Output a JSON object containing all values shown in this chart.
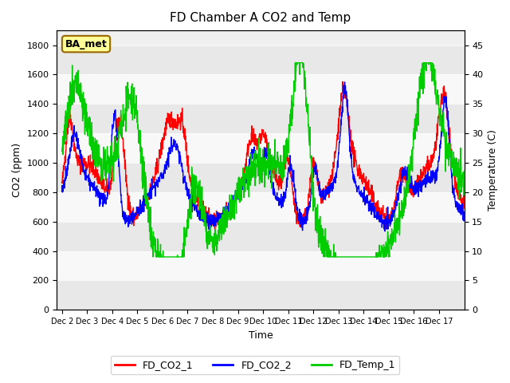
{
  "title": "FD Chamber A CO2 and Temp",
  "xlabel": "Time",
  "ylabel_left": "CO2 (ppm)",
  "ylabel_right": "Temperature (C)",
  "ylim_left": [
    0,
    1900
  ],
  "ylim_right": [
    0,
    47.5
  ],
  "yticks_left": [
    0,
    200,
    400,
    600,
    800,
    1000,
    1200,
    1400,
    1600,
    1800
  ],
  "yticks_right": [
    0,
    5,
    10,
    15,
    20,
    25,
    30,
    35,
    40,
    45
  ],
  "xtick_labels": [
    "Dec 2",
    "Dec 3",
    "Dec 4",
    "Dec 5",
    "Dec 6",
    "Dec 7",
    "Dec 8",
    "Dec 9",
    "Dec 10",
    "Dec 11",
    "Dec 12",
    "Dec 13",
    "Dec 14",
    "Dec 15",
    "Dec 16",
    "Dec 17"
  ],
  "n_days": 16,
  "background_color": "#ffffff",
  "plot_bg_color": "#f0f0f0",
  "band_colors": [
    "#e8e8e8",
    "#f8f8f8"
  ],
  "line_colors": {
    "co2_1": "#ff0000",
    "co2_2": "#0000ff",
    "temp_1": "#00cc00"
  },
  "line_width": 1.0,
  "label_box_text": "BA_met",
  "label_box_facecolor": "#ffff99",
  "label_box_edgecolor": "#996600",
  "legend_labels": [
    "FD_CO2_1",
    "FD_CO2_2",
    "FD_Temp_1"
  ],
  "fig_width": 6.4,
  "fig_height": 4.8,
  "dpi": 100
}
